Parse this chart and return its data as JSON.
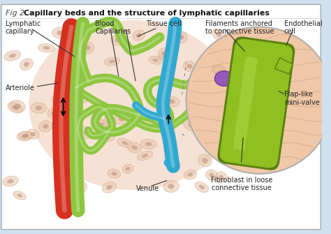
{
  "title_regular": "Fig 2. ",
  "title_bold": "Capillary beds and the structure of lymphatic capillaries",
  "bg_color": "#cfe0f0",
  "labels": {
    "lymphatic_capillary": "Lymphatic\ncapillary",
    "blood_capillaries": "Blood\nCapillaries",
    "tissue_cell": "Tissue cell",
    "filaments": "Filaments anchored\nto connective tissue",
    "endothelial_cell": "Endothelial\ncell",
    "arteriole": "Arteriole",
    "venule": "Venule",
    "flap_like": "Flap-like\nmini-valve",
    "fibroblast": "Fibroblast in loose\nconnective tissue"
  },
  "colors": {
    "red_vessel": "#d63020",
    "green_vessel": "#8dc63f",
    "green_dark": "#5a8a10",
    "blue_vessel": "#30a8d0",
    "tissue_bg": "#e8b898",
    "cell_fill": "#e8c4a8",
    "cell_outline": "#c89878",
    "circle_bg": "#f0c8a8",
    "circle_border": "#b0b0b0",
    "green_cell": "#8dc020",
    "green_cell_dark": "#5a8010",
    "purple_nucleus": "#9858b8",
    "dark_text": "#222222",
    "line_color": "#444444"
  }
}
